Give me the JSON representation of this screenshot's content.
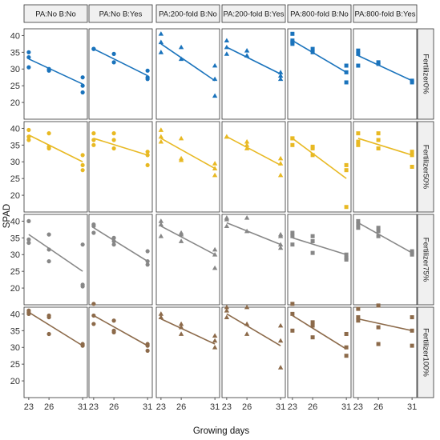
{
  "chart_data": {
    "type": "scatter",
    "title": "",
    "xlabel": "Growing days",
    "ylabel": "SPAD",
    "x_ticks": [
      23,
      26,
      31
    ],
    "x_tick_labels": [
      "23",
      "26",
      "31"
    ],
    "xlim": [
      22.3,
      31.7
    ],
    "y_ticks": [
      20,
      25,
      30,
      35,
      40
    ],
    "ylim": [
      15,
      42
    ],
    "columns": [
      {
        "label": "PA:No B:No",
        "marker": "circle"
      },
      {
        "label": "PA:No B:Yes",
        "marker": "circle"
      },
      {
        "label": "PA:200-fold B:No",
        "marker": "triangle"
      },
      {
        "label": "PA:200-fold B:Yes",
        "marker": "triangle"
      },
      {
        "label": "PA:800-fold B:No",
        "marker": "square"
      },
      {
        "label": "PA:800-fold B:Yes",
        "marker": "square"
      }
    ],
    "rows": [
      {
        "label": "Fertilizer0%",
        "color": "#1a73bc"
      },
      {
        "label": "Fertilizer50%",
        "color": "#e8b923"
      },
      {
        "label": "Fertilizer75%",
        "color": "#878787"
      },
      {
        "label": "Fertilizer100%",
        "color": "#8c6a4a"
      }
    ],
    "panels": [
      [
        {
          "points": [
            [
              23,
              35
            ],
            [
              23,
              33.5
            ],
            [
              23,
              30.5
            ],
            [
              26,
              30
            ],
            [
              26,
              29.5
            ],
            [
              31,
              27.5
            ],
            [
              31,
              25
            ],
            [
              31,
              23
            ]
          ],
          "fit": [
            [
              23,
              33
            ],
            [
              31,
              25.5
            ]
          ]
        },
        {
          "points": [
            [
              23,
              36
            ],
            [
              23,
              36
            ],
            [
              26,
              34.5
            ],
            [
              26,
              32
            ],
            [
              31,
              29.5
            ],
            [
              31,
              27.5
            ],
            [
              31,
              27
            ]
          ],
          "fit": [
            [
              23,
              36
            ],
            [
              31,
              28
            ]
          ]
        },
        {
          "points": [
            [
              23,
              40.5
            ],
            [
              23,
              38
            ],
            [
              23,
              35
            ],
            [
              26,
              36.5
            ],
            [
              26,
              33
            ],
            [
              31,
              31
            ],
            [
              31,
              27
            ],
            [
              31,
              22
            ]
          ],
          "fit": [
            [
              23,
              37.5
            ],
            [
              31,
              26.5
            ]
          ]
        },
        {
          "points": [
            [
              23,
              38.5
            ],
            [
              23,
              36.5
            ],
            [
              23,
              34.5
            ],
            [
              26,
              35.5
            ],
            [
              26,
              34
            ],
            [
              31,
              29
            ],
            [
              31,
              28
            ],
            [
              31,
              27
            ]
          ],
          "fit": [
            [
              23,
              36.5
            ],
            [
              31,
              28.5
            ]
          ]
        },
        {
          "points": [
            [
              23,
              40.5
            ],
            [
              23,
              38.5
            ],
            [
              23,
              38
            ],
            [
              23,
              37.5
            ],
            [
              26,
              36
            ],
            [
              26,
              35
            ],
            [
              31,
              31
            ],
            [
              31,
              29
            ],
            [
              31,
              26
            ]
          ],
          "fit": [
            [
              23,
              38.5
            ],
            [
              31,
              29
            ]
          ]
        },
        {
          "points": [
            [
              23,
              35.5
            ],
            [
              23,
              34.5
            ],
            [
              23,
              31
            ],
            [
              26,
              32
            ],
            [
              26,
              31.5
            ],
            [
              31,
              26.5
            ],
            [
              31,
              26
            ]
          ],
          "fit": [
            [
              23,
              34
            ],
            [
              31,
              26.5
            ]
          ]
        }
      ],
      [
        {
          "points": [
            [
              23,
              39.5
            ],
            [
              23,
              37.5
            ],
            [
              23,
              36.5
            ],
            [
              26,
              38.5
            ],
            [
              26,
              34.5
            ],
            [
              26,
              34
            ],
            [
              31,
              32
            ],
            [
              31,
              29
            ],
            [
              31,
              27.5
            ]
          ],
          "fit": [
            [
              23,
              38
            ],
            [
              31,
              30
            ]
          ]
        },
        {
          "points": [
            [
              23,
              38.5
            ],
            [
              23,
              36.5
            ],
            [
              23,
              35
            ],
            [
              26,
              38.5
            ],
            [
              26,
              36.5
            ],
            [
              26,
              34
            ],
            [
              31,
              33
            ],
            [
              31,
              32
            ],
            [
              31,
              29
            ]
          ],
          "fit": [
            [
              23,
              37
            ],
            [
              31,
              32
            ]
          ]
        },
        {
          "points": [
            [
              23,
              39.5
            ],
            [
              23,
              37.5
            ],
            [
              23,
              36
            ],
            [
              26,
              37
            ],
            [
              26,
              31
            ],
            [
              26,
              30.5
            ],
            [
              31,
              29.5
            ],
            [
              31,
              28
            ],
            [
              31,
              26
            ]
          ],
          "fit": [
            [
              23,
              37
            ],
            [
              31,
              28
            ]
          ]
        },
        {
          "points": [
            [
              23,
              37.5
            ],
            [
              23,
              37.5
            ],
            [
              26,
              36
            ],
            [
              26,
              35
            ],
            [
              26,
              34
            ],
            [
              31,
              31
            ],
            [
              31,
              29.5
            ],
            [
              31,
              26
            ]
          ],
          "fit": [
            [
              23,
              37.5
            ],
            [
              31,
              29
            ]
          ]
        },
        {
          "points": [
            [
              23,
              37
            ],
            [
              23,
              37
            ],
            [
              23,
              35
            ],
            [
              26,
              34.5
            ],
            [
              26,
              34
            ],
            [
              26,
              32
            ],
            [
              31,
              29
            ],
            [
              31,
              27.5
            ],
            [
              31,
              16.5
            ]
          ],
          "fit": [
            [
              23,
              37
            ],
            [
              31,
              25
            ]
          ]
        },
        {
          "points": [
            [
              23,
              38.5
            ],
            [
              23,
              36
            ],
            [
              23,
              35
            ],
            [
              26,
              38.5
            ],
            [
              26,
              36.5
            ],
            [
              26,
              34
            ],
            [
              31,
              33
            ],
            [
              31,
              32
            ],
            [
              31,
              28.5
            ]
          ],
          "fit": [
            [
              23,
              37
            ],
            [
              31,
              32
            ]
          ]
        }
      ],
      [
        {
          "points": [
            [
              23,
              40
            ],
            [
              23,
              34.5
            ],
            [
              23,
              33.5
            ],
            [
              26,
              36
            ],
            [
              26,
              31.5
            ],
            [
              26,
              28
            ],
            [
              31,
              33
            ],
            [
              31,
              21
            ],
            [
              31,
              20.5
            ]
          ],
          "fit": [
            [
              23,
              36
            ],
            [
              31,
              25
            ]
          ]
        },
        {
          "points": [
            [
              23,
              39
            ],
            [
              23,
              38.5
            ],
            [
              23,
              36.5
            ],
            [
              26,
              35
            ],
            [
              26,
              34
            ],
            [
              26,
              33
            ],
            [
              31,
              31
            ],
            [
              31,
              28
            ],
            [
              31,
              27
            ]
          ],
          "fit": [
            [
              23,
              38
            ],
            [
              31,
              28
            ]
          ]
        },
        {
          "points": [
            [
              23,
              40
            ],
            [
              23,
              39
            ],
            [
              23,
              35.5
            ],
            [
              26,
              36.5
            ],
            [
              26,
              36
            ],
            [
              26,
              34
            ],
            [
              31,
              31.5
            ],
            [
              31,
              30
            ],
            [
              31,
              26
            ]
          ],
          "fit": [
            [
              23,
              38.5
            ],
            [
              31,
              30
            ]
          ]
        },
        {
          "points": [
            [
              23,
              41
            ],
            [
              23,
              40.5
            ],
            [
              23,
              38.5
            ],
            [
              26,
              41
            ],
            [
              26,
              37
            ],
            [
              31,
              36
            ],
            [
              31,
              35.5
            ],
            [
              31,
              33
            ],
            [
              31,
              32
            ]
          ],
          "fit": [
            [
              23,
              39.5
            ],
            [
              31,
              33
            ]
          ]
        },
        {
          "points": [
            [
              23,
              36.5
            ],
            [
              23,
              35.5
            ],
            [
              23,
              33
            ],
            [
              26,
              35.5
            ],
            [
              26,
              34
            ],
            [
              26,
              30.5
            ],
            [
              31,
              30
            ],
            [
              31,
              29
            ],
            [
              31,
              28.5
            ]
          ],
          "fit": [
            [
              23,
              35
            ],
            [
              31,
              30
            ]
          ]
        },
        {
          "points": [
            [
              23,
              40
            ],
            [
              23,
              39
            ],
            [
              23,
              38
            ],
            [
              26,
              38
            ],
            [
              26,
              37
            ],
            [
              26,
              35.5
            ],
            [
              31,
              31
            ],
            [
              31,
              30.5
            ],
            [
              31,
              30
            ]
          ],
          "fit": [
            [
              23,
              39.5
            ],
            [
              31,
              30.5
            ]
          ]
        }
      ],
      [
        {
          "points": [
            [
              23,
              41
            ],
            [
              23,
              40.5
            ],
            [
              23,
              40
            ],
            [
              26,
              39.5
            ],
            [
              26,
              39
            ],
            [
              26,
              34
            ],
            [
              31,
              31
            ],
            [
              31,
              30.5
            ]
          ],
          "fit": [
            [
              23,
              40.5
            ],
            [
              31,
              30.5
            ]
          ]
        },
        {
          "points": [
            [
              23,
              43
            ],
            [
              23,
              39.5
            ],
            [
              23,
              37
            ],
            [
              26,
              38
            ],
            [
              26,
              35
            ],
            [
              26,
              34.5
            ],
            [
              31,
              31
            ],
            [
              31,
              30.5
            ],
            [
              31,
              29
            ]
          ],
          "fit": [
            [
              23,
              39.5
            ],
            [
              31,
              30.5
            ]
          ]
        },
        {
          "points": [
            [
              23,
              40
            ],
            [
              23,
              39
            ],
            [
              26,
              37
            ],
            [
              26,
              36
            ],
            [
              26,
              34
            ],
            [
              31,
              33.5
            ],
            [
              31,
              32
            ],
            [
              31,
              30
            ]
          ],
          "fit": [
            [
              23,
              38.5
            ],
            [
              31,
              31
            ]
          ]
        },
        {
          "points": [
            [
              23,
              42
            ],
            [
              23,
              41
            ],
            [
              23,
              39
            ],
            [
              26,
              42
            ],
            [
              26,
              37
            ],
            [
              26,
              34
            ],
            [
              31,
              36.5
            ],
            [
              31,
              32
            ],
            [
              31,
              24
            ]
          ],
          "fit": [
            [
              23,
              40
            ],
            [
              31,
              30.5
            ]
          ]
        },
        {
          "points": [
            [
              23,
              43
            ],
            [
              23,
              40
            ],
            [
              23,
              35
            ],
            [
              26,
              37.5
            ],
            [
              26,
              36.5
            ],
            [
              26,
              33
            ],
            [
              31,
              34
            ],
            [
              31,
              30
            ],
            [
              31,
              27.5
            ]
          ],
          "fit": [
            [
              23,
              39.5
            ],
            [
              31,
              29.5
            ]
          ]
        },
        {
          "points": [
            [
              23,
              41.5
            ],
            [
              23,
              39
            ],
            [
              23,
              38
            ],
            [
              26,
              42.5
            ],
            [
              26,
              36
            ],
            [
              26,
              31
            ],
            [
              31,
              39
            ],
            [
              31,
              35
            ],
            [
              31,
              30.5
            ]
          ],
          "fit": [
            [
              23,
              38.5
            ],
            [
              31,
              35
            ]
          ]
        }
      ]
    ],
    "grid": false,
    "legend": "none"
  }
}
